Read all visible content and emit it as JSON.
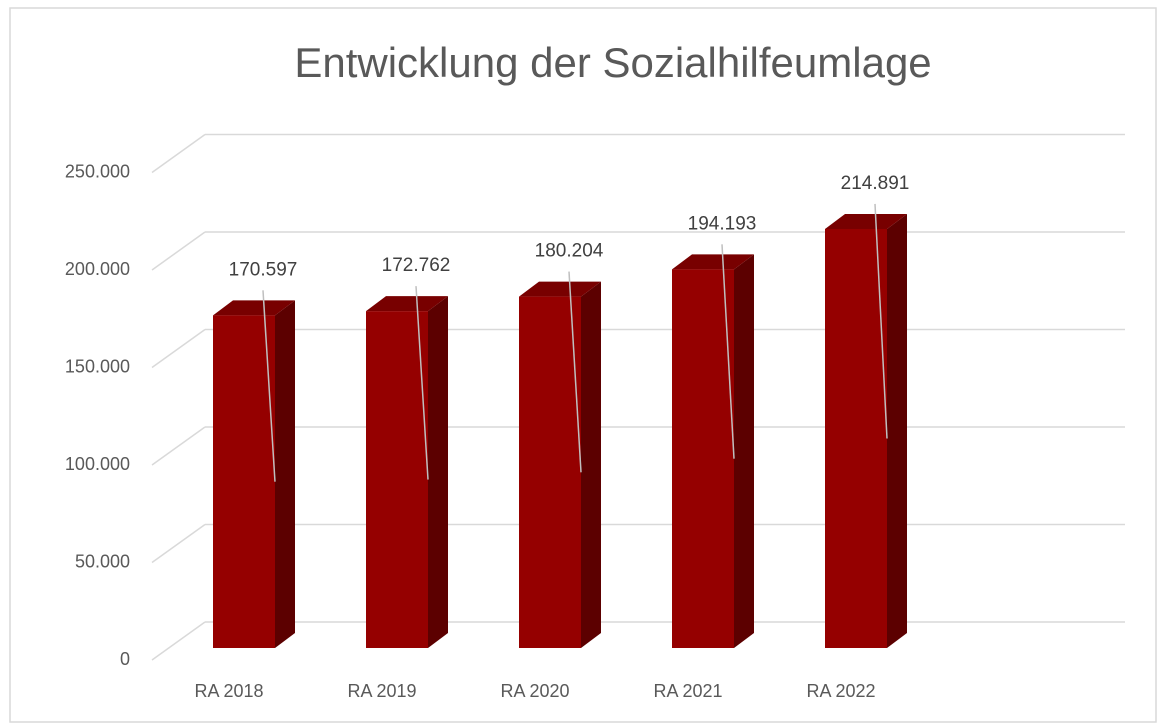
{
  "chart_data": {
    "type": "bar",
    "title": "Entwicklung der Sozialhilfeumlage",
    "categories": [
      "RA 2018",
      "RA 2019",
      "RA 2020",
      "RA 2021",
      "RA 2022"
    ],
    "values": [
      170597,
      172762,
      180204,
      194193,
      214891
    ],
    "value_labels": [
      "170.597",
      "172.762",
      "180.204",
      "194.193",
      "214.891"
    ],
    "color": "#950000",
    "ylim": [
      0,
      250000
    ],
    "yticks": [
      0,
      {
        "value": 50000,
        "label": "50.000"
      },
      {
        "value": 100000,
        "label": "100.000"
      },
      {
        "value": 150000,
        "label": "150.000"
      },
      {
        "value": 200000,
        "label": "200.000"
      },
      {
        "value": 250000,
        "label": "250.000"
      }
    ],
    "grid": true
  }
}
